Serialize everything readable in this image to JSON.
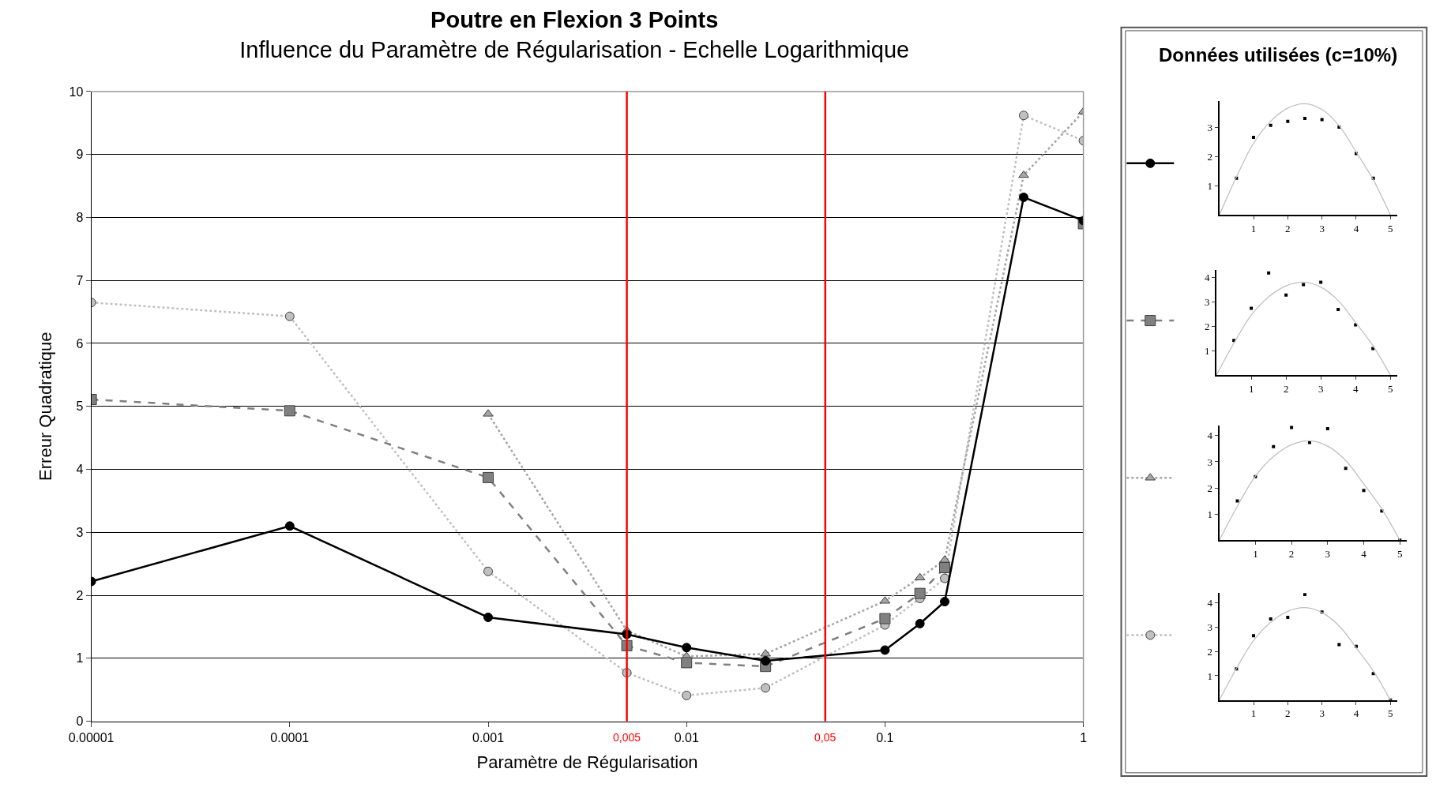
{
  "chart_data": [
    {
      "type": "line",
      "title": "Poutre en Flexion 3 Points",
      "subtitle": "Influence du Paramètre de Régularisation - Echelle Logarithmique",
      "xlabel": "Paramètre de Régularisation",
      "ylabel": "Erreur Quadratique",
      "log": "x",
      "x": [
        1e-05,
        0.0001,
        0.001,
        0.005,
        0.01,
        0.025,
        0.1,
        0.15,
        0.2,
        0.5,
        1
      ],
      "series": [
        {
          "color": "#000000",
          "marker": "circle",
          "line_style": "solid",
          "values": [
            2.22,
            3.1,
            1.65,
            1.38,
            1.17,
            0.96,
            1.13,
            1.55,
            1.9,
            8.32,
            7.95
          ]
        },
        {
          "color": "#808080",
          "marker": "square",
          "line_style": "dashed",
          "values": [
            5.11,
            4.93,
            3.87,
            1.2,
            0.93,
            0.87,
            1.63,
            2.03,
            2.44,
            null,
            7.9
          ]
        },
        {
          "color": "#a6a6a6",
          "marker": "triangle",
          "line_style": "dotted",
          "values": [
            null,
            null,
            4.88,
            1.44,
            1.03,
            1.07,
            1.91,
            2.28,
            2.56,
            8.67,
            9.68
          ]
        },
        {
          "color": "#c0c0c0",
          "marker": "circle",
          "line_style": "dotted",
          "values": [
            6.65,
            6.43,
            2.38,
            0.77,
            0.41,
            0.53,
            1.53,
            1.95,
            2.27,
            9.62,
            9.22
          ]
        }
      ],
      "xlim": [
        1e-05,
        1
      ],
      "xticks": [
        {
          "value": 1e-05,
          "label": "0.00001"
        },
        0.0001,
        0.001,
        0.01,
        0.1,
        1
      ],
      "ylim": [
        0,
        10
      ],
      "yticks": [
        0,
        1,
        2,
        3,
        4,
        5,
        6,
        7,
        8,
        9,
        10
      ],
      "grid": "y",
      "legend": "right",
      "ref_lines": [
        {
          "axis": "x",
          "value": 0.005,
          "label": "0,005",
          "color": "#ff0000"
        },
        {
          "axis": "x",
          "value": 0.05,
          "label": "0,05",
          "color": "#ff0000"
        }
      ],
      "annotations": [
        "Données utilisées (c=10%)"
      ]
    },
    {
      "type": "scatter",
      "x": [
        0.5,
        1,
        1.5,
        2,
        2.5,
        3,
        3.5,
        4,
        4.5
      ],
      "legend": false,
      "series": [
        {
          "color": "#000000",
          "marker": "square",
          "values": [
            1.26,
            2.65,
            3.06,
            3.2,
            3.3,
            3.26,
            3.0,
            2.1,
            1.26
          ]
        },
        {
          "type": "line",
          "color": "#c0c0c0",
          "x": [
            0,
            0.5,
            1,
            1.5,
            2,
            2.5,
            3,
            3.5,
            4,
            4.5,
            5
          ],
          "values": [
            0,
            1.3,
            2.45,
            3.2,
            3.65,
            3.8,
            3.6,
            3.05,
            2.15,
            1.2,
            0
          ]
        }
      ],
      "xlim": [
        0,
        5.2
      ],
      "xticks": [
        1,
        2,
        3,
        4,
        5
      ],
      "ylim": [
        0,
        3.9
      ],
      "yticks": [
        1,
        2,
        3
      ]
    },
    {
      "type": "scatter",
      "x": [
        0.5,
        1,
        1.5,
        2,
        2.5,
        3,
        3.5,
        4,
        4.5
      ],
      "legend": false,
      "series": [
        {
          "color": "#000000",
          "marker": "square",
          "values": [
            1.41,
            2.73,
            4.18,
            3.27,
            3.7,
            3.8,
            2.68,
            2.05,
            1.08
          ]
        },
        {
          "type": "line",
          "color": "#c0c0c0",
          "x": [
            0,
            0.5,
            1,
            1.5,
            2,
            2.5,
            3,
            3.5,
            4,
            4.5,
            5
          ],
          "values": [
            0,
            1.3,
            2.45,
            3.2,
            3.65,
            3.8,
            3.6,
            3.05,
            2.15,
            1.2,
            0
          ]
        }
      ],
      "xlim": [
        0,
        5.2
      ],
      "xticks": [
        1,
        2,
        3,
        4,
        5
      ],
      "ylim": [
        0,
        4.3
      ],
      "yticks": [
        1,
        2,
        3,
        4
      ]
    },
    {
      "type": "scatter",
      "x": [
        0.5,
        1,
        1.5,
        2,
        2.5,
        3,
        3.5,
        4,
        4.5,
        5
      ],
      "legend": false,
      "series": [
        {
          "color": "#000000",
          "marker": "square",
          "values": [
            1.5,
            2.43,
            3.58,
            4.31,
            3.74,
            4.27,
            2.75,
            1.9,
            1.12,
            0
          ]
        },
        {
          "type": "line",
          "color": "#c0c0c0",
          "x": [
            0,
            0.5,
            1,
            1.5,
            2,
            2.5,
            3,
            3.5,
            4,
            4.5,
            5
          ],
          "values": [
            0,
            1.3,
            2.45,
            3.2,
            3.65,
            3.8,
            3.6,
            3.05,
            2.15,
            1.2,
            0
          ]
        }
      ],
      "xlim": [
        0,
        5.2
      ],
      "xticks": [
        1,
        2,
        3,
        4,
        5
      ],
      "ylim": [
        0,
        4.4
      ],
      "yticks": [
        1,
        2,
        3,
        4
      ]
    },
    {
      "type": "scatter",
      "x": [
        0.5,
        1,
        1.5,
        2,
        2.5,
        3,
        3.5,
        4,
        4.5,
        5
      ],
      "legend": false,
      "series": [
        {
          "color": "#000000",
          "marker": "square",
          "values": [
            1.28,
            2.65,
            3.34,
            3.4,
            4.34,
            3.62,
            2.28,
            2.21,
            1.09,
            0
          ]
        },
        {
          "type": "line",
          "color": "#c0c0c0",
          "x": [
            0,
            0.5,
            1,
            1.5,
            2,
            2.5,
            3,
            3.5,
            4,
            4.5,
            5
          ],
          "values": [
            0,
            1.3,
            2.45,
            3.2,
            3.65,
            3.8,
            3.6,
            3.05,
            2.15,
            1.2,
            0
          ]
        }
      ],
      "xlim": [
        0,
        5.2
      ],
      "xticks": [
        1,
        2,
        3,
        4,
        5
      ],
      "ylim": [
        0,
        4.4
      ],
      "yticks": [
        1,
        2,
        3,
        4
      ]
    }
  ]
}
